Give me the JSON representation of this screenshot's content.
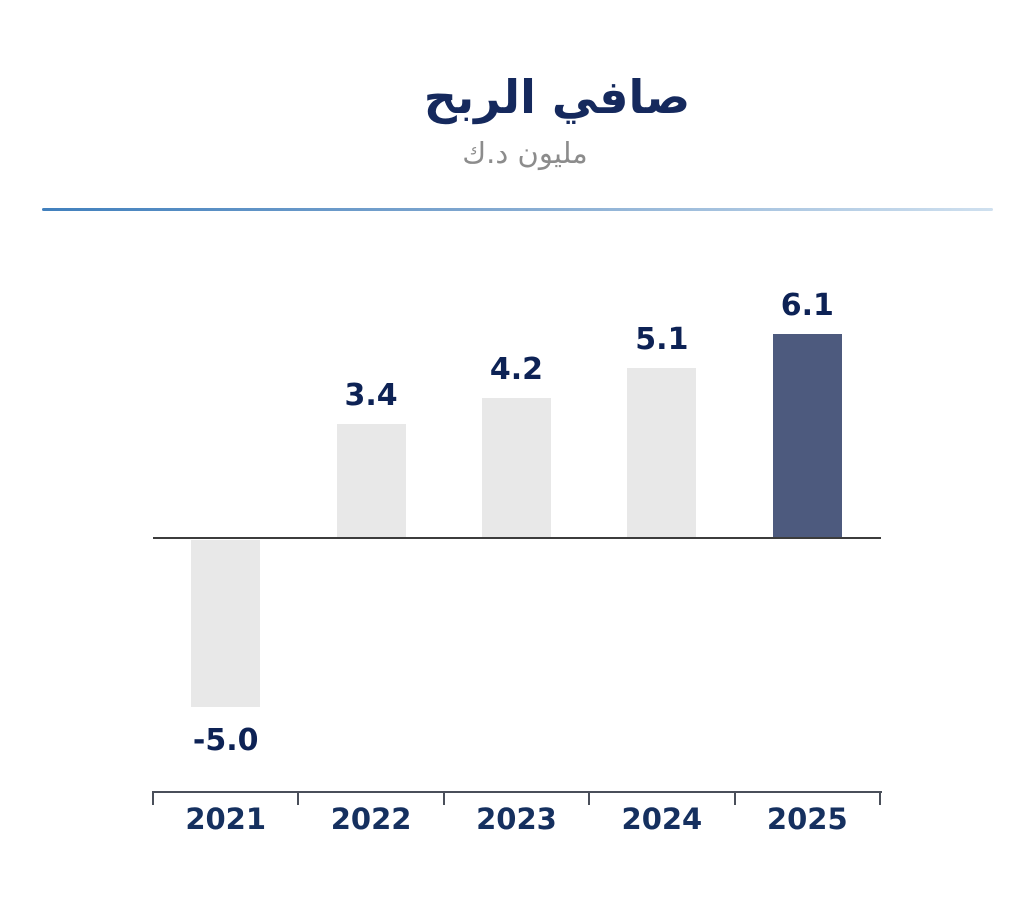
{
  "chart_data": {
    "type": "bar",
    "title": "صافي الربح",
    "subtitle": "مليون د.ك",
    "categories": [
      "2021",
      "2022",
      "2023",
      "2024",
      "2025"
    ],
    "values": [
      -5.0,
      3.4,
      4.2,
      5.1,
      6.1
    ],
    "value_labels": [
      "-5.0",
      "3.4",
      "4.2",
      "5.1",
      "6.1"
    ],
    "highlight_index": 4,
    "ylim": [
      -5.8,
      6.8
    ],
    "grid": false,
    "legend": false,
    "x_axis_position": "bottom",
    "colors": {
      "bar_default": "#e8e8e8",
      "bar_highlight": "#4d5a7e",
      "value_label": "#0d2255",
      "year_label": "#15305f",
      "title": "#15295d",
      "subtitle": "#8c8c8c",
      "axis": "#4a4f5a",
      "baseline": "#3c3c3c",
      "divider_start": "#4180bd",
      "divider_end": "#cfe0ef"
    }
  }
}
